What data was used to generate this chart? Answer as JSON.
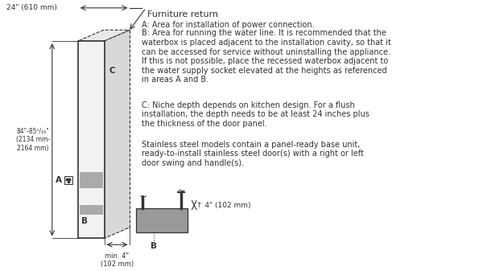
{
  "bg_color": "#ffffff",
  "diagram_color": "#333333",
  "gray_fill": "#aaaaaa",
  "light_gray": "#cccccc",
  "title_label": "Furniture return",
  "width_label": "24\" (610 mm)",
  "height_label": "84\"-85¹/₁₆\"\n(2134 mm-\n2164 mm)",
  "min_label": "min. 4\"\n(102 mm)",
  "depth_label": "↑ 4\" (102 mm)",
  "label_A": "A",
  "label_B": "B",
  "label_C": "C",
  "text_A": "A: Area for installation of power connection.",
  "text_B": "B: Area for running the water line. It is recommended that the\nwaterbox is placed adjacent to the installation cavity, so that it\ncan be accessed for service without uninstalling the appliance.\nIf this is not possible, place the recessed waterbox adjacent to\nthe water supply socket elevated at the heights as referenced\nin areas A and B.",
  "text_C": "C: Niche depth depends on kitchen design. For a flush\ninstallation, the depth needs to be at least 24 inches plus\nthe thickness of the door panel.",
  "text_D": "Stainless steel models contain a panel-ready base unit,\nready-to-install stainless steel door(s) with a right or left\ndoor swing and handle(s)."
}
